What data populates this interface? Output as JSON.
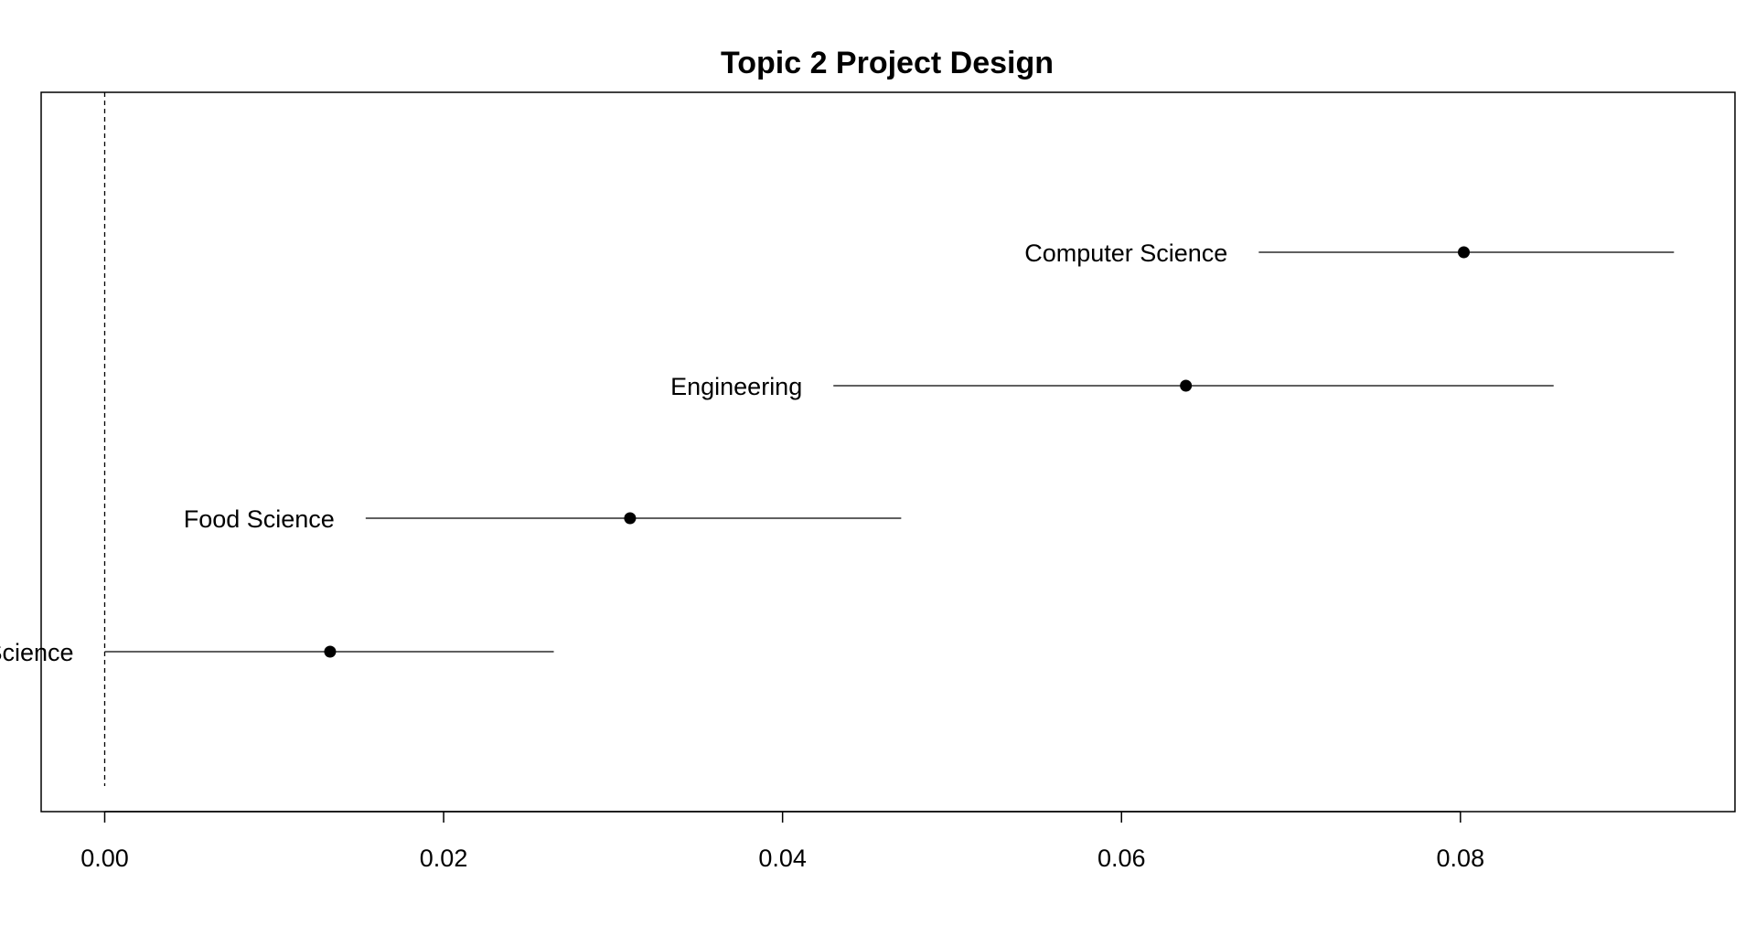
{
  "chart_data": {
    "type": "forest",
    "title": "Topic 2 Project Design",
    "xlabel": "",
    "ylabel": "",
    "xlim": [
      -0.00375,
      0.0962
    ],
    "reference_line_x": 0,
    "x_ticks": [
      "0.00",
      "0.02",
      "0.04",
      "0.06",
      "0.08"
    ],
    "x_tick_values": [
      0,
      0.02,
      0.04,
      0.06,
      0.08
    ],
    "grid": false,
    "legend": "none",
    "points": [
      {
        "label": "Computer Science",
        "estimate": 0.0802,
        "lower": 0.0681,
        "upper": 0.0926
      },
      {
        "label": "Engineering",
        "estimate": 0.0638,
        "lower": 0.043,
        "upper": 0.0855
      },
      {
        "label": "Food Science",
        "estimate": 0.031,
        "lower": 0.0154,
        "upper": 0.047
      },
      {
        "label": "Science",
        "estimate": 0.0133,
        "lower": 0.0,
        "upper": 0.0265
      }
    ],
    "colors": {
      "points": "#000000",
      "lines": "#000000",
      "frame": "#000000"
    }
  }
}
